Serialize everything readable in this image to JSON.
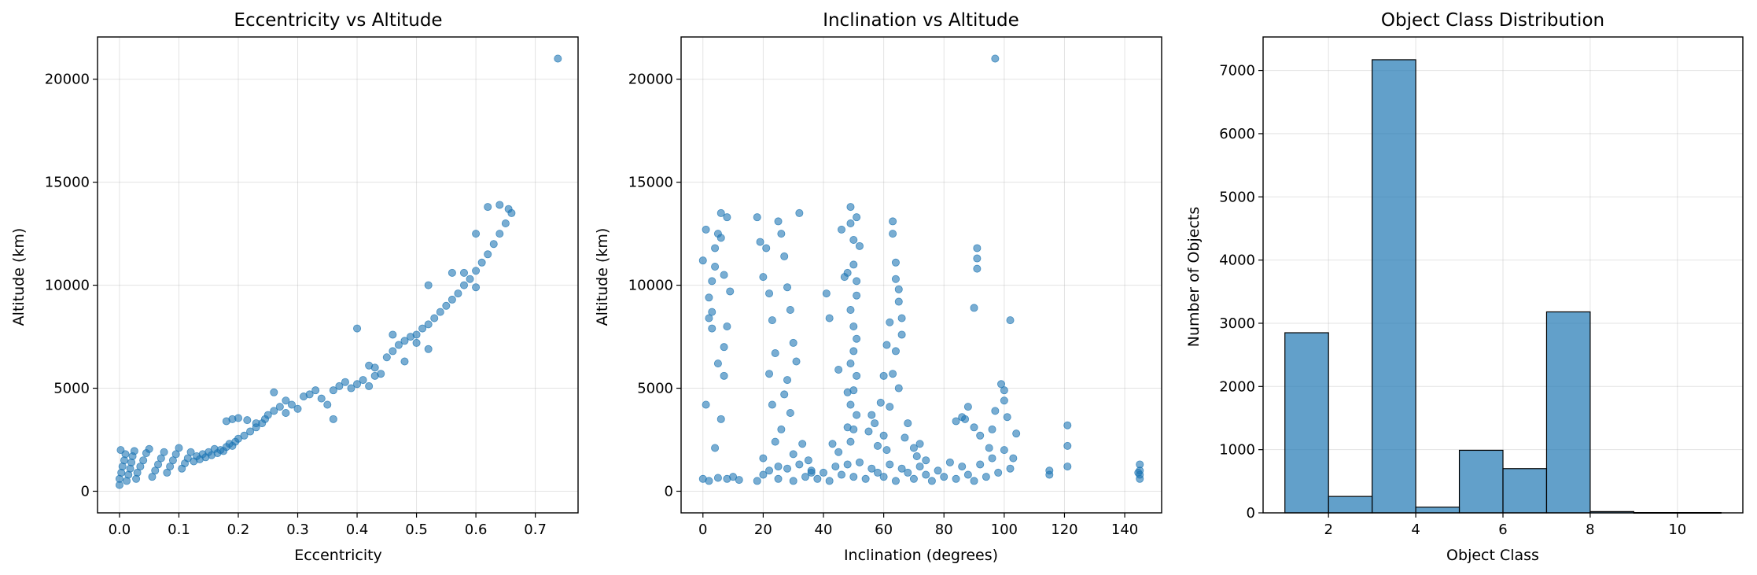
{
  "chart_data": [
    {
      "type": "scatter",
      "title": "Eccentricity vs Altitude",
      "xlabel": "Eccentricity",
      "ylabel": "Altitude (km)",
      "xlim": [
        -0.037,
        0.772
      ],
      "ylim": [
        -1050,
        22050
      ],
      "xticks": [
        0.0,
        0.1,
        0.2,
        0.3,
        0.4,
        0.5,
        0.6,
        0.7
      ],
      "xtick_labels": [
        "0.0",
        "0.1",
        "0.2",
        "0.3",
        "0.4",
        "0.5",
        "0.6",
        "0.7"
      ],
      "yticks": [
        0,
        5000,
        10000,
        15000,
        20000
      ],
      "ytick_labels": [
        "0",
        "5000",
        "10000",
        "15000",
        "20000"
      ],
      "grid": true,
      "color": "#1f77b4",
      "points": [
        [
          0.0,
          300
        ],
        [
          0.0,
          600
        ],
        [
          0.003,
          900
        ],
        [
          0.005,
          1200
        ],
        [
          0.008,
          1500
        ],
        [
          0.01,
          1800
        ],
        [
          0.002,
          2000
        ],
        [
          0.012,
          500
        ],
        [
          0.015,
          800
        ],
        [
          0.018,
          1100
        ],
        [
          0.02,
          1400
        ],
        [
          0.022,
          1700
        ],
        [
          0.025,
          1950
        ],
        [
          0.028,
          600
        ],
        [
          0.03,
          900
        ],
        [
          0.035,
          1200
        ],
        [
          0.04,
          1500
        ],
        [
          0.045,
          1850
        ],
        [
          0.05,
          2050
        ],
        [
          0.055,
          700
        ],
        [
          0.06,
          1000
        ],
        [
          0.065,
          1300
        ],
        [
          0.07,
          1600
        ],
        [
          0.075,
          1900
        ],
        [
          0.08,
          900
        ],
        [
          0.085,
          1200
        ],
        [
          0.09,
          1500
        ],
        [
          0.095,
          1800
        ],
        [
          0.1,
          2100
        ],
        [
          0.105,
          1100
        ],
        [
          0.11,
          1350
        ],
        [
          0.115,
          1600
        ],
        [
          0.12,
          1900
        ],
        [
          0.125,
          1450
        ],
        [
          0.13,
          1700
        ],
        [
          0.135,
          1550
        ],
        [
          0.14,
          1800
        ],
        [
          0.145,
          1650
        ],
        [
          0.15,
          1900
        ],
        [
          0.155,
          1750
        ],
        [
          0.16,
          2050
        ],
        [
          0.165,
          1850
        ],
        [
          0.17,
          2000
        ],
        [
          0.175,
          1950
        ],
        [
          0.18,
          2150
        ],
        [
          0.185,
          2300
        ],
        [
          0.19,
          2200
        ],
        [
          0.195,
          2400
        ],
        [
          0.2,
          2550
        ],
        [
          0.21,
          2700
        ],
        [
          0.22,
          2900
        ],
        [
          0.23,
          3100
        ],
        [
          0.24,
          3300
        ],
        [
          0.18,
          3400
        ],
        [
          0.19,
          3500
        ],
        [
          0.2,
          3550
        ],
        [
          0.215,
          3450
        ],
        [
          0.23,
          3300
        ],
        [
          0.245,
          3500
        ],
        [
          0.25,
          3700
        ],
        [
          0.26,
          3900
        ],
        [
          0.26,
          4800
        ],
        [
          0.28,
          4400
        ],
        [
          0.27,
          4100
        ],
        [
          0.28,
          3800
        ],
        [
          0.29,
          4200
        ],
        [
          0.3,
          4000
        ],
        [
          0.31,
          4600
        ],
        [
          0.32,
          4700
        ],
        [
          0.33,
          4900
        ],
        [
          0.34,
          4500
        ],
        [
          0.36,
          4900
        ],
        [
          0.37,
          5100
        ],
        [
          0.38,
          5300
        ],
        [
          0.39,
          5000
        ],
        [
          0.4,
          5200
        ],
        [
          0.41,
          5400
        ],
        [
          0.42,
          5100
        ],
        [
          0.43,
          5600
        ],
        [
          0.42,
          6100
        ],
        [
          0.43,
          6000
        ],
        [
          0.45,
          6500
        ],
        [
          0.46,
          6800
        ],
        [
          0.47,
          7100
        ],
        [
          0.48,
          7300
        ],
        [
          0.49,
          7500
        ],
        [
          0.5,
          7600
        ],
        [
          0.51,
          7900
        ],
        [
          0.52,
          8100
        ],
        [
          0.53,
          8400
        ],
        [
          0.54,
          8700
        ],
        [
          0.55,
          9000
        ],
        [
          0.56,
          9300
        ],
        [
          0.57,
          9600
        ],
        [
          0.58,
          10000
        ],
        [
          0.59,
          10300
        ],
        [
          0.6,
          10700
        ],
        [
          0.61,
          11100
        ],
        [
          0.62,
          11500
        ],
        [
          0.63,
          12000
        ],
        [
          0.64,
          12500
        ],
        [
          0.65,
          13000
        ],
        [
          0.66,
          13500
        ],
        [
          0.62,
          13800
        ],
        [
          0.64,
          13900
        ],
        [
          0.655,
          13700
        ],
        [
          0.6,
          12500
        ],
        [
          0.52,
          6900
        ],
        [
          0.5,
          7200
        ],
        [
          0.48,
          6300
        ],
        [
          0.44,
          5700
        ],
        [
          0.46,
          7600
        ],
        [
          0.4,
          7900
        ],
        [
          0.52,
          10000
        ],
        [
          0.56,
          10600
        ],
        [
          0.58,
          10600
        ],
        [
          0.6,
          9900
        ],
        [
          0.36,
          3500
        ],
        [
          0.35,
          4200
        ],
        [
          0.738,
          21000
        ]
      ]
    },
    {
      "type": "scatter",
      "title": "Inclination vs Altitude",
      "xlabel": "Inclination (degrees)",
      "ylabel": "Altitude (km)",
      "xlim": [
        -7.25,
        152.25
      ],
      "ylim": [
        -1050,
        22050
      ],
      "xticks": [
        0,
        20,
        40,
        60,
        80,
        100,
        120,
        140
      ],
      "xtick_labels": [
        "0",
        "20",
        "40",
        "60",
        "80",
        "100",
        "120",
        "140"
      ],
      "yticks": [
        0,
        5000,
        10000,
        15000,
        20000
      ],
      "ytick_labels": [
        "0",
        "5000",
        "10000",
        "15000",
        "20000"
      ],
      "grid": true,
      "color": "#1f77b4",
      "points": [
        [
          0,
          600
        ],
        [
          2,
          500
        ],
        [
          5,
          650
        ],
        [
          8,
          600
        ],
        [
          10,
          700
        ],
        [
          12,
          550
        ],
        [
          0,
          11200
        ],
        [
          1,
          12700
        ],
        [
          2,
          9400
        ],
        [
          3,
          10200
        ],
        [
          4,
          11800
        ],
        [
          5,
          12500
        ],
        [
          6,
          13500
        ],
        [
          7,
          10500
        ],
        [
          8,
          13300
        ],
        [
          9,
          9700
        ],
        [
          2,
          8400
        ],
        [
          3,
          7900
        ],
        [
          5,
          6200
        ],
        [
          7,
          7000
        ],
        [
          7,
          5600
        ],
        [
          8,
          8000
        ],
        [
          6,
          3500
        ],
        [
          4,
          2100
        ],
        [
          1,
          4200
        ],
        [
          3,
          8700
        ],
        [
          6,
          12300
        ],
        [
          4,
          10900
        ],
        [
          18,
          13300
        ],
        [
          19,
          12100
        ],
        [
          20,
          10400
        ],
        [
          21,
          11800
        ],
        [
          22,
          9600
        ],
        [
          23,
          8300
        ],
        [
          24,
          6700
        ],
        [
          25,
          13100
        ],
        [
          26,
          12500
        ],
        [
          27,
          11400
        ],
        [
          28,
          9900
        ],
        [
          29,
          8800
        ],
        [
          30,
          7200
        ],
        [
          31,
          6300
        ],
        [
          32,
          13500
        ],
        [
          28,
          5400
        ],
        [
          27,
          4700
        ],
        [
          29,
          3800
        ],
        [
          26,
          3000
        ],
        [
          24,
          2400
        ],
        [
          22,
          5700
        ],
        [
          23,
          4200
        ],
        [
          20,
          1600
        ],
        [
          25,
          1200
        ],
        [
          30,
          1800
        ],
        [
          33,
          2300
        ],
        [
          35,
          1500
        ],
        [
          36,
          900
        ],
        [
          18,
          500
        ],
        [
          20,
          800
        ],
        [
          22,
          1000
        ],
        [
          25,
          600
        ],
        [
          28,
          1100
        ],
        [
          30,
          500
        ],
        [
          32,
          1300
        ],
        [
          34,
          700
        ],
        [
          36,
          1000
        ],
        [
          38,
          600
        ],
        [
          40,
          900
        ],
        [
          42,
          500
        ],
        [
          44,
          1200
        ],
        [
          46,
          800
        ],
        [
          48,
          1300
        ],
        [
          50,
          700
        ],
        [
          52,
          1400
        ],
        [
          54,
          600
        ],
        [
          56,
          1100
        ],
        [
          58,
          900
        ],
        [
          60,
          700
        ],
        [
          62,
          1300
        ],
        [
          64,
          500
        ],
        [
          66,
          1100
        ],
        [
          68,
          900
        ],
        [
          70,
          600
        ],
        [
          72,
          1200
        ],
        [
          74,
          800
        ],
        [
          76,
          500
        ],
        [
          78,
          1000
        ],
        [
          80,
          700
        ],
        [
          82,
          1400
        ],
        [
          84,
          600
        ],
        [
          86,
          1200
        ],
        [
          88,
          800
        ],
        [
          90,
          500
        ],
        [
          92,
          1300
        ],
        [
          94,
          700
        ],
        [
          96,
          1600
        ],
        [
          98,
          900
        ],
        [
          100,
          2000
        ],
        [
          102,
          1100
        ],
        [
          41,
          9600
        ],
        [
          42,
          8400
        ],
        [
          45,
          5900
        ],
        [
          46,
          12700
        ],
        [
          47,
          10400
        ],
        [
          48,
          4800
        ],
        [
          48,
          3100
        ],
        [
          45,
          1900
        ],
        [
          43,
          2300
        ],
        [
          49,
          13800
        ],
        [
          49,
          13000
        ],
        [
          50,
          12200
        ],
        [
          50,
          11000
        ],
        [
          51,
          10200
        ],
        [
          51,
          9500
        ],
        [
          49,
          8800
        ],
        [
          50,
          8000
        ],
        [
          51,
          7400
        ],
        [
          50,
          6800
        ],
        [
          49,
          6200
        ],
        [
          51,
          5600
        ],
        [
          50,
          4900
        ],
        [
          49,
          4200
        ],
        [
          51,
          3700
        ],
        [
          50,
          3000
        ],
        [
          49,
          2400
        ],
        [
          51,
          13300
        ],
        [
          52,
          11900
        ],
        [
          48,
          10600
        ],
        [
          55,
          2900
        ],
        [
          56,
          3700
        ],
        [
          57,
          3300
        ],
        [
          58,
          2200
        ],
        [
          59,
          4300
        ],
        [
          60,
          5600
        ],
        [
          61,
          7100
        ],
        [
          62,
          8200
        ],
        [
          63,
          13100
        ],
        [
          63,
          12500
        ],
        [
          64,
          11100
        ],
        [
          64,
          10300
        ],
        [
          65,
          9800
        ],
        [
          65,
          9200
        ],
        [
          66,
          8400
        ],
        [
          66,
          7600
        ],
        [
          64,
          6800
        ],
        [
          63,
          5700
        ],
        [
          65,
          5000
        ],
        [
          62,
          4100
        ],
        [
          60,
          2700
        ],
        [
          61,
          2000
        ],
        [
          67,
          2600
        ],
        [
          68,
          3300
        ],
        [
          70,
          2100
        ],
        [
          71,
          1700
        ],
        [
          72,
          2300
        ],
        [
          74,
          1500
        ],
        [
          84,
          3400
        ],
        [
          86,
          3600
        ],
        [
          87,
          3500
        ],
        [
          88,
          4100
        ],
        [
          90,
          8900
        ],
        [
          91,
          11800
        ],
        [
          91,
          11300
        ],
        [
          91,
          10800
        ],
        [
          90,
          3100
        ],
        [
          92,
          2700
        ],
        [
          95,
          2100
        ],
        [
          96,
          3000
        ],
        [
          97,
          3900
        ],
        [
          99,
          5200
        ],
        [
          100,
          4900
        ],
        [
          100,
          4400
        ],
        [
          101,
          3600
        ],
        [
          102,
          8300
        ],
        [
          103,
          1600
        ],
        [
          104,
          2800
        ],
        [
          97,
          21000
        ],
        [
          115,
          800
        ],
        [
          115,
          1000
        ],
        [
          121,
          3200
        ],
        [
          121,
          2200
        ],
        [
          121,
          1200
        ],
        [
          145,
          600
        ],
        [
          145,
          800
        ],
        [
          145,
          1000
        ],
        [
          145,
          1300
        ],
        [
          144.5,
          900
        ]
      ]
    },
    {
      "type": "bar",
      "title": "Object Class Distribution",
      "xlabel": "Object Class",
      "ylabel": "Number of Objects",
      "xlim": [
        0.5,
        11.5
      ],
      "ylim": [
        0,
        7530
      ],
      "xticks": [
        2,
        4,
        6,
        8,
        10
      ],
      "xtick_labels": [
        "2",
        "4",
        "6",
        "8",
        "10"
      ],
      "yticks": [
        0,
        1000,
        2000,
        3000,
        4000,
        5000,
        6000,
        7000
      ],
      "ytick_labels": [
        "0",
        "1000",
        "2000",
        "3000",
        "4000",
        "5000",
        "6000",
        "7000"
      ],
      "grid": true,
      "color": "#1f77b4",
      "bins": [
        {
          "left": 1,
          "right": 2,
          "value": 2850
        },
        {
          "left": 2,
          "right": 3,
          "value": 260
        },
        {
          "left": 3,
          "right": 4,
          "value": 7170
        },
        {
          "left": 4,
          "right": 5,
          "value": 90
        },
        {
          "left": 5,
          "right": 6,
          "value": 990
        },
        {
          "left": 6,
          "right": 7,
          "value": 700
        },
        {
          "left": 7,
          "right": 8,
          "value": 3180
        },
        {
          "left": 8,
          "right": 9,
          "value": 20
        },
        {
          "left": 9,
          "right": 10,
          "value": 5
        },
        {
          "left": 10,
          "right": 11,
          "value": 5
        }
      ]
    }
  ]
}
